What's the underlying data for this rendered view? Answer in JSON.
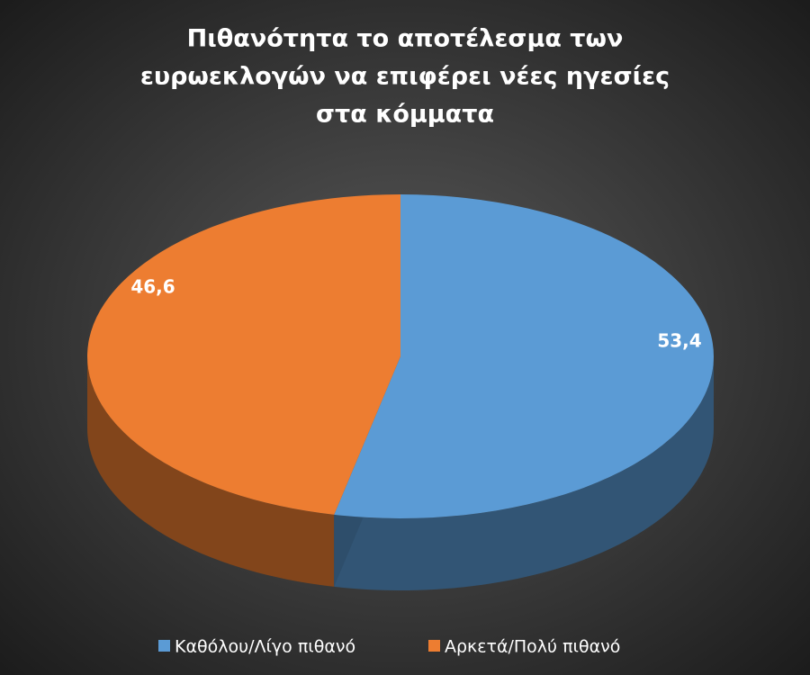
{
  "chart_data": {
    "type": "pie3d",
    "title": [
      "Πιθανότητα το αποτέλεσμα των",
      "ευρωεκλογών να επιφέρει  νέες ηγεσίες",
      "στα κόμματα"
    ],
    "categories": [
      "Καθόλου/Λίγο πιθανό",
      "Αρκετά/Πολύ πιθανό"
    ],
    "values": [
      53.4,
      46.6
    ],
    "value_labels": [
      "53,4",
      "46,6"
    ],
    "colors": [
      "#5b9bd5",
      "#ed7d31"
    ],
    "legend": "bottom"
  }
}
